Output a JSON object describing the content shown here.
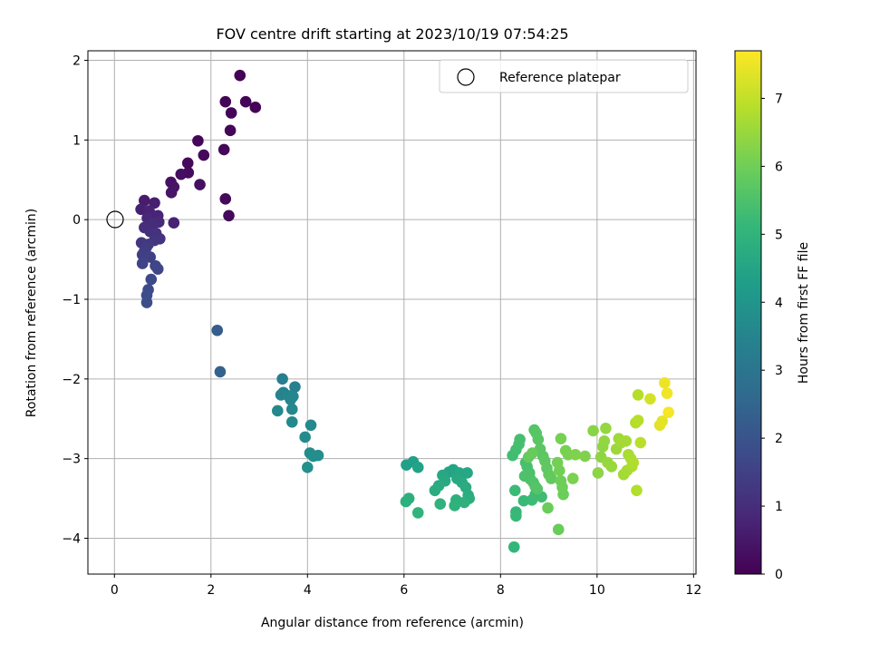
{
  "chart_data": {
    "type": "scatter",
    "title": "FOV centre drift starting at 2023/10/19 07:54:25",
    "xlabel": "Angular distance from reference (arcmin)",
    "ylabel": "Rotation from reference (arcmin)",
    "xlim": [
      -0.55,
      12.05
    ],
    "ylim": [
      -4.45,
      2.12
    ],
    "xticks": [
      0,
      2,
      4,
      6,
      8,
      10,
      12
    ],
    "yticks": [
      -4,
      -3,
      -2,
      -1,
      0,
      1,
      2
    ],
    "grid": true,
    "legend": {
      "position": "top-right",
      "entries": [
        "Reference platepar"
      ]
    },
    "reference_point": {
      "x": 0,
      "y": 0
    },
    "colorbar": {
      "label": "Hours from first FF file",
      "colormap": "viridis",
      "range": [
        0,
        7.7
      ],
      "ticks": [
        0,
        1,
        2,
        3,
        4,
        5,
        6,
        7
      ]
    },
    "series": [
      {
        "points": [
          [
            2.6,
            1.81,
            0.05
          ],
          [
            2.3,
            1.48,
            0.06
          ],
          [
            2.72,
            1.48,
            0.07
          ],
          [
            2.92,
            1.41,
            0.08
          ],
          [
            2.42,
            1.34,
            0.09
          ],
          [
            2.4,
            1.12,
            0.1
          ],
          [
            1.73,
            0.99,
            0.12
          ],
          [
            2.27,
            0.88,
            0.14
          ],
          [
            1.85,
            0.81,
            0.16
          ],
          [
            1.52,
            0.71,
            0.2
          ],
          [
            1.53,
            0.59,
            0.24
          ],
          [
            1.38,
            0.57,
            0.28
          ],
          [
            1.77,
            0.44,
            0.32
          ],
          [
            1.17,
            0.47,
            0.36
          ],
          [
            1.23,
            0.41,
            0.4
          ],
          [
            1.18,
            0.34,
            0.44
          ],
          [
            2.3,
            0.26,
            0.15
          ],
          [
            2.37,
            0.05,
            0.18
          ],
          [
            0.62,
            0.24,
            0.6
          ],
          [
            0.83,
            0.21,
            0.65
          ],
          [
            0.55,
            0.13,
            0.7
          ],
          [
            0.72,
            0.11,
            0.75
          ],
          [
            0.9,
            0.05,
            0.8
          ],
          [
            0.68,
            0.02,
            0.85
          ],
          [
            0.92,
            -0.03,
            0.9
          ],
          [
            0.8,
            -0.05,
            0.95
          ],
          [
            1.23,
            -0.04,
            0.72
          ],
          [
            0.62,
            -0.1,
            1.0
          ],
          [
            0.74,
            -0.15,
            1.05
          ],
          [
            0.86,
            -0.17,
            1.1
          ],
          [
            0.94,
            -0.24,
            1.15
          ],
          [
            0.83,
            -0.26,
            1.2
          ],
          [
            0.56,
            -0.29,
            1.25
          ],
          [
            0.7,
            -0.31,
            1.3
          ],
          [
            0.66,
            -0.35,
            1.35
          ],
          [
            0.62,
            -0.4,
            1.4
          ],
          [
            0.58,
            -0.44,
            1.45
          ],
          [
            0.74,
            -0.47,
            1.5
          ],
          [
            0.58,
            -0.55,
            1.55
          ],
          [
            0.85,
            -0.58,
            1.6
          ],
          [
            0.9,
            -0.62,
            1.65
          ],
          [
            0.76,
            -0.75,
            1.7
          ],
          [
            0.7,
            -0.88,
            1.75
          ],
          [
            0.67,
            -0.95,
            1.8
          ],
          [
            0.67,
            -1.04,
            1.85
          ],
          [
            2.13,
            -1.39,
            2.3
          ],
          [
            2.19,
            -1.91,
            2.4
          ],
          [
            3.48,
            -2.0,
            3.3
          ],
          [
            3.74,
            -2.1,
            3.35
          ],
          [
            3.5,
            -2.17,
            3.4
          ],
          [
            3.45,
            -2.2,
            3.45
          ],
          [
            3.6,
            -2.21,
            3.5
          ],
          [
            3.7,
            -2.22,
            3.55
          ],
          [
            3.65,
            -2.26,
            3.58
          ],
          [
            3.68,
            -2.38,
            3.6
          ],
          [
            3.38,
            -2.4,
            3.62
          ],
          [
            3.68,
            -2.54,
            3.65
          ],
          [
            4.07,
            -2.58,
            3.68
          ],
          [
            3.95,
            -2.73,
            3.7
          ],
          [
            4.05,
            -2.93,
            3.75
          ],
          [
            4.22,
            -2.96,
            3.78
          ],
          [
            4.12,
            -2.97,
            3.8
          ],
          [
            4.0,
            -3.11,
            3.85
          ],
          [
            6.19,
            -3.04,
            4.3
          ],
          [
            6.05,
            -3.08,
            4.35
          ],
          [
            6.29,
            -3.11,
            4.4
          ],
          [
            7.02,
            -3.14,
            4.45
          ],
          [
            6.93,
            -3.17,
            4.5
          ],
          [
            7.15,
            -3.18,
            4.55
          ],
          [
            6.8,
            -3.21,
            4.58
          ],
          [
            7.31,
            -3.18,
            4.6
          ],
          [
            7.1,
            -3.25,
            4.62
          ],
          [
            6.85,
            -3.28,
            4.65
          ],
          [
            7.2,
            -3.3,
            4.68
          ],
          [
            6.72,
            -3.34,
            4.7
          ],
          [
            7.28,
            -3.36,
            4.72
          ],
          [
            6.64,
            -3.4,
            4.75
          ],
          [
            7.33,
            -3.46,
            4.78
          ],
          [
            7.35,
            -3.5,
            4.8
          ],
          [
            6.1,
            -3.5,
            4.82
          ],
          [
            6.04,
            -3.54,
            4.85
          ],
          [
            7.08,
            -3.52,
            4.88
          ],
          [
            7.25,
            -3.55,
            4.9
          ],
          [
            6.75,
            -3.57,
            4.92
          ],
          [
            7.05,
            -3.59,
            4.95
          ],
          [
            6.29,
            -3.68,
            4.98
          ],
          [
            8.28,
            -4.11,
            5.1
          ],
          [
            8.32,
            -3.67,
            5.15
          ],
          [
            8.32,
            -3.72,
            5.18
          ],
          [
            8.48,
            -3.53,
            5.2
          ],
          [
            8.3,
            -3.4,
            5.22
          ],
          [
            8.65,
            -3.52,
            5.25
          ],
          [
            8.72,
            -3.45,
            5.28
          ],
          [
            8.85,
            -3.48,
            5.3
          ],
          [
            8.25,
            -2.96,
            5.32
          ],
          [
            8.32,
            -2.89,
            5.35
          ],
          [
            8.38,
            -2.82,
            5.38
          ],
          [
            8.4,
            -2.76,
            5.4
          ],
          [
            8.52,
            -3.05,
            5.42
          ],
          [
            8.55,
            -3.1,
            5.45
          ],
          [
            8.6,
            -3.18,
            5.48
          ],
          [
            8.5,
            -3.22,
            5.5
          ],
          [
            8.62,
            -3.26,
            5.52
          ],
          [
            8.68,
            -3.3,
            5.55
          ],
          [
            8.72,
            -3.35,
            5.58
          ],
          [
            8.76,
            -3.38,
            5.6
          ],
          [
            8.7,
            -2.64,
            5.62
          ],
          [
            8.74,
            -2.68,
            5.65
          ],
          [
            8.78,
            -2.76,
            5.68
          ],
          [
            8.82,
            -2.88,
            5.7
          ],
          [
            8.88,
            -2.97,
            5.72
          ],
          [
            8.92,
            -3.03,
            5.75
          ],
          [
            8.96,
            -3.12,
            5.78
          ],
          [
            9.0,
            -3.2,
            5.8
          ],
          [
            9.05,
            -3.25,
            5.82
          ],
          [
            8.58,
            -2.98,
            5.85
          ],
          [
            8.66,
            -2.93,
            5.88
          ],
          [
            9.2,
            -3.89,
            5.9
          ],
          [
            8.98,
            -3.62,
            5.92
          ],
          [
            9.3,
            -3.45,
            5.95
          ],
          [
            9.28,
            -3.36,
            5.98
          ],
          [
            9.25,
            -3.28,
            6.0
          ],
          [
            9.22,
            -3.15,
            6.02
          ],
          [
            9.18,
            -3.05,
            6.05
          ],
          [
            9.25,
            -2.75,
            6.08
          ],
          [
            9.35,
            -2.9,
            6.1
          ],
          [
            9.4,
            -2.95,
            6.12
          ],
          [
            9.5,
            -3.25,
            6.15
          ],
          [
            9.55,
            -2.95,
            6.18
          ],
          [
            9.75,
            -2.97,
            6.2
          ],
          [
            9.92,
            -2.65,
            6.3
          ],
          [
            10.02,
            -3.18,
            6.35
          ],
          [
            10.08,
            -2.98,
            6.38
          ],
          [
            10.12,
            -2.85,
            6.4
          ],
          [
            10.15,
            -2.78,
            6.42
          ],
          [
            10.18,
            -2.62,
            6.45
          ],
          [
            10.22,
            -3.05,
            6.48
          ],
          [
            10.3,
            -3.1,
            6.5
          ],
          [
            10.4,
            -2.88,
            6.55
          ],
          [
            10.45,
            -2.75,
            6.58
          ],
          [
            10.5,
            -2.8,
            6.6
          ],
          [
            10.55,
            -3.2,
            6.62
          ],
          [
            10.6,
            -2.78,
            6.65
          ],
          [
            10.62,
            -3.15,
            6.68
          ],
          [
            10.65,
            -2.95,
            6.7
          ],
          [
            10.7,
            -3.0,
            6.72
          ],
          [
            10.72,
            -3.1,
            6.75
          ],
          [
            10.75,
            -3.05,
            6.78
          ],
          [
            10.8,
            -2.55,
            6.8
          ],
          [
            10.82,
            -3.4,
            6.82
          ],
          [
            10.85,
            -2.2,
            6.85
          ],
          [
            10.85,
            -2.52,
            6.88
          ],
          [
            10.9,
            -2.8,
            6.9
          ],
          [
            11.1,
            -2.25,
            7.2
          ],
          [
            11.3,
            -2.58,
            7.35
          ],
          [
            11.35,
            -2.53,
            7.4
          ],
          [
            11.4,
            -2.05,
            7.5
          ],
          [
            11.45,
            -2.18,
            7.55
          ],
          [
            11.48,
            -2.42,
            7.6
          ]
        ]
      }
    ]
  }
}
